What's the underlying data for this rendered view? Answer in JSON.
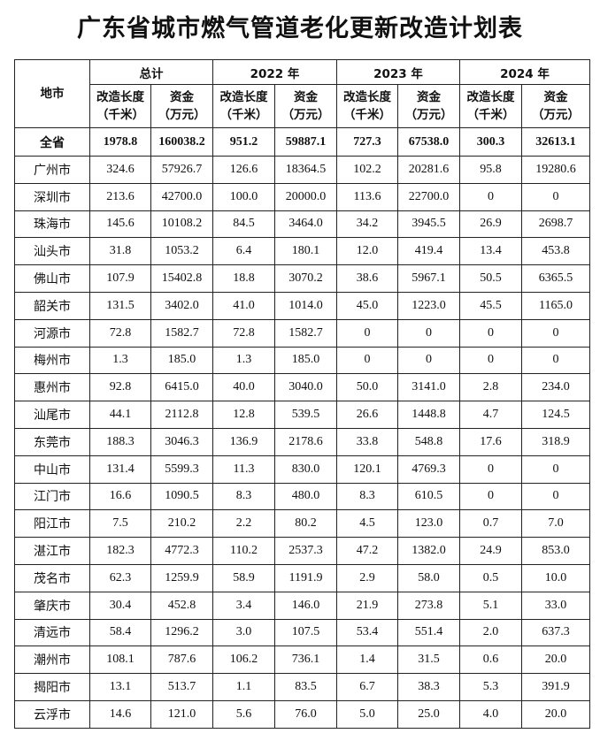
{
  "title": "广东省城市燃气管道老化更新改造计划表",
  "headers": {
    "city": "地市",
    "groups": [
      "总计",
      "2022 年",
      "2023 年",
      "2024 年"
    ],
    "length": "改造长度（千米）",
    "length_l1": "改造长度",
    "length_l2": "（千米）",
    "fund_l1": "资金",
    "fund_l2": "（万元）"
  },
  "total": {
    "city": "全省",
    "values": [
      "1978.8",
      "160038.2",
      "951.2",
      "59887.1",
      "727.3",
      "67538.0",
      "300.3",
      "32613.1"
    ]
  },
  "rows": [
    {
      "city": "广州市",
      "values": [
        "324.6",
        "57926.7",
        "126.6",
        "18364.5",
        "102.2",
        "20281.6",
        "95.8",
        "19280.6"
      ]
    },
    {
      "city": "深圳市",
      "values": [
        "213.6",
        "42700.0",
        "100.0",
        "20000.0",
        "113.6",
        "22700.0",
        "0",
        "0"
      ]
    },
    {
      "city": "珠海市",
      "values": [
        "145.6",
        "10108.2",
        "84.5",
        "3464.0",
        "34.2",
        "3945.5",
        "26.9",
        "2698.7"
      ]
    },
    {
      "city": "汕头市",
      "values": [
        "31.8",
        "1053.2",
        "6.4",
        "180.1",
        "12.0",
        "419.4",
        "13.4",
        "453.8"
      ]
    },
    {
      "city": "佛山市",
      "values": [
        "107.9",
        "15402.8",
        "18.8",
        "3070.2",
        "38.6",
        "5967.1",
        "50.5",
        "6365.5"
      ]
    },
    {
      "city": "韶关市",
      "values": [
        "131.5",
        "3402.0",
        "41.0",
        "1014.0",
        "45.0",
        "1223.0",
        "45.5",
        "1165.0"
      ]
    },
    {
      "city": "河源市",
      "values": [
        "72.8",
        "1582.7",
        "72.8",
        "1582.7",
        "0",
        "0",
        "0",
        "0"
      ]
    },
    {
      "city": "梅州市",
      "values": [
        "1.3",
        "185.0",
        "1.3",
        "185.0",
        "0",
        "0",
        "0",
        "0"
      ]
    },
    {
      "city": "惠州市",
      "values": [
        "92.8",
        "6415.0",
        "40.0",
        "3040.0",
        "50.0",
        "3141.0",
        "2.8",
        "234.0"
      ]
    },
    {
      "city": "汕尾市",
      "values": [
        "44.1",
        "2112.8",
        "12.8",
        "539.5",
        "26.6",
        "1448.8",
        "4.7",
        "124.5"
      ]
    },
    {
      "city": "东莞市",
      "values": [
        "188.3",
        "3046.3",
        "136.9",
        "2178.6",
        "33.8",
        "548.8",
        "17.6",
        "318.9"
      ]
    },
    {
      "city": "中山市",
      "values": [
        "131.4",
        "5599.3",
        "11.3",
        "830.0",
        "120.1",
        "4769.3",
        "0",
        "0"
      ]
    },
    {
      "city": "江门市",
      "values": [
        "16.6",
        "1090.5",
        "8.3",
        "480.0",
        "8.3",
        "610.5",
        "0",
        "0"
      ]
    },
    {
      "city": "阳江市",
      "values": [
        "7.5",
        "210.2",
        "2.2",
        "80.2",
        "4.5",
        "123.0",
        "0.7",
        "7.0"
      ]
    },
    {
      "city": "湛江市",
      "values": [
        "182.3",
        "4772.3",
        "110.2",
        "2537.3",
        "47.2",
        "1382.0",
        "24.9",
        "853.0"
      ]
    },
    {
      "city": "茂名市",
      "values": [
        "62.3",
        "1259.9",
        "58.9",
        "1191.9",
        "2.9",
        "58.0",
        "0.5",
        "10.0"
      ]
    },
    {
      "city": "肇庆市",
      "values": [
        "30.4",
        "452.8",
        "3.4",
        "146.0",
        "21.9",
        "273.8",
        "5.1",
        "33.0"
      ]
    },
    {
      "city": "清远市",
      "values": [
        "58.4",
        "1296.2",
        "3.0",
        "107.5",
        "53.4",
        "551.4",
        "2.0",
        "637.3"
      ]
    },
    {
      "city": "潮州市",
      "values": [
        "108.1",
        "787.6",
        "106.2",
        "736.1",
        "1.4",
        "31.5",
        "0.6",
        "20.0"
      ]
    },
    {
      "city": "揭阳市",
      "values": [
        "13.1",
        "513.7",
        "1.1",
        "83.5",
        "6.7",
        "38.3",
        "5.3",
        "391.9"
      ]
    },
    {
      "city": "云浮市",
      "values": [
        "14.6",
        "121.0",
        "5.6",
        "76.0",
        "5.0",
        "25.0",
        "4.0",
        "20.0"
      ]
    }
  ]
}
